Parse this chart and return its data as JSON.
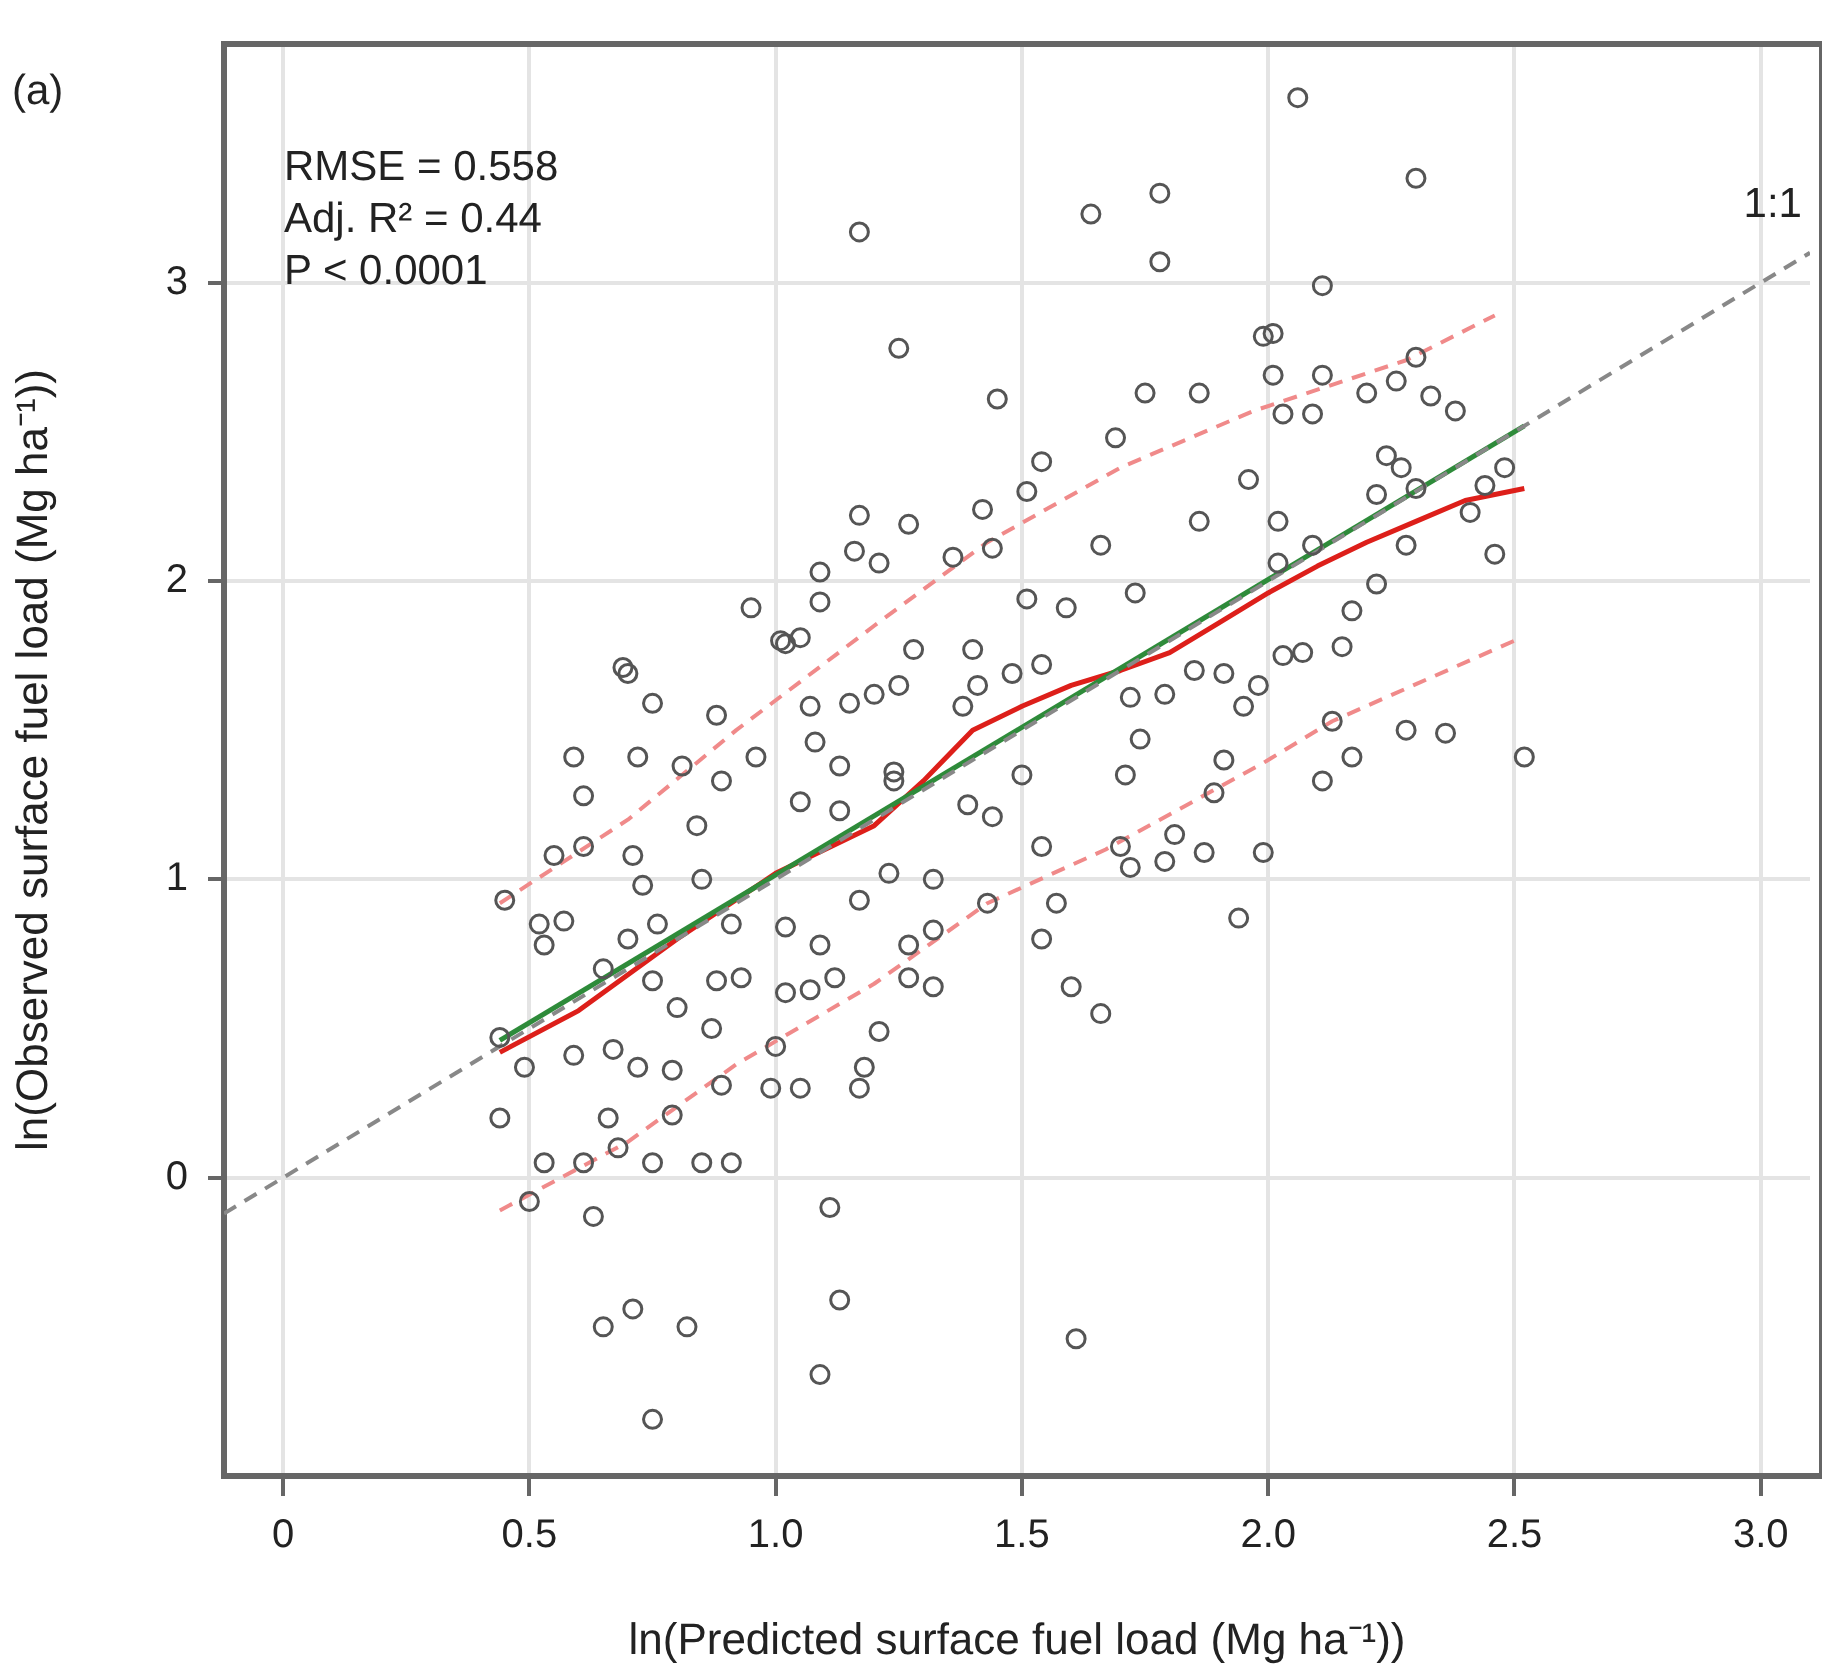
{
  "chart_data": {
    "type": "scatter",
    "title": "(a)",
    "xlabel": "ln(Predicted surface fuel load (Mg ha⁻¹))",
    "ylabel": "ln(Observed surface fuel load (Mg ha⁻¹))",
    "xlim": [
      -0.12,
      3.1
    ],
    "ylim": [
      -1.0,
      3.8
    ],
    "xticks": [
      0,
      0.5,
      {
        "value": 1,
        "label": "1.0"
      },
      1.5,
      {
        "value": 2,
        "label": "2.0"
      },
      2.5,
      {
        "value": 3,
        "label": "3.0"
      }
    ],
    "yticks": [
      0,
      1,
      2,
      3
    ],
    "grid": true,
    "legend": false,
    "annotations": [
      "RMSE = 0.558",
      "Adj. R² = 0.44",
      "P < 0.0001"
    ],
    "series": [
      {
        "color": "#555555",
        "marker": "circle",
        "x": [
          2.06,
          2.3,
          1.17,
          1.64,
          1.78,
          1.78,
          1.25,
          1.45,
          1.75,
          1.86,
          1.69,
          1.54,
          1.51,
          1.17,
          1.27,
          1.42,
          1.16,
          1.21,
          1.09,
          0.95,
          1.09,
          1.36,
          1.44,
          1.66,
          1.73,
          1.86,
          1.96,
          1.99,
          1.28,
          1.51,
          1.59,
          1.4,
          1.02,
          1.54,
          2.11,
          2.01,
          2.01,
          2.11,
          2.2,
          2.26,
          2.3,
          2.33,
          2.38,
          2.03,
          2.09,
          2.24,
          2.27,
          2.48,
          2.44,
          2.22,
          2.3,
          2.41,
          2.46,
          2.28,
          2.09,
          2.22,
          2.17,
          2.15,
          2.07,
          2.03,
          1.98,
          2.13,
          2.28,
          2.36,
          2.02,
          2.02,
          2.52,
          2.17,
          2.11,
          1.99,
          1.11,
          1.13,
          1.09,
          1.61,
          1.66,
          1.6,
          1.17,
          1.18,
          1.21,
          1.05,
          0.99,
          1.0,
          1.32,
          1.27,
          1.07,
          1.12,
          1.02,
          1.43,
          1.57,
          1.54,
          1.32,
          1.27,
          1.23,
          1.17,
          1.09,
          1.02,
          1.39,
          1.44,
          1.5,
          1.54,
          1.32,
          1.72,
          1.79,
          1.87,
          1.94,
          1.7,
          1.71,
          1.91,
          1.89,
          1.81,
          1.05,
          1.13,
          0.96,
          1.08,
          1.24,
          0.75,
          0.65,
          0.71,
          0.82,
          0.63,
          0.5,
          0.44,
          0.53,
          0.61,
          0.68,
          0.75,
          0.85,
          0.91,
          0.66,
          0.79,
          0.49,
          0.67,
          0.59,
          0.72,
          0.79,
          0.89,
          0.44,
          0.65,
          0.75,
          0.8,
          0.87,
          0.88,
          0.53,
          0.52,
          0.57,
          0.7,
          0.76,
          0.85,
          0.73,
          0.45,
          0.55,
          0.61,
          0.71,
          0.61,
          0.59,
          0.72,
          0.81,
          0.89,
          0.84,
          0.91,
          0.93,
          0.69,
          0.7,
          0.75,
          0.88,
          1.01,
          1.05,
          1.07,
          1.15,
          1.2,
          1.25,
          1.38,
          1.41,
          1.48,
          1.72,
          1.79,
          1.85,
          1.91,
          1.95,
          1.13,
          1.24,
          1.74
        ],
        "values": [
          3.62,
          3.35,
          3.17,
          3.23,
          3.3,
          3.07,
          2.78,
          2.61,
          2.63,
          2.63,
          2.48,
          2.4,
          2.3,
          2.22,
          2.19,
          2.24,
          2.1,
          2.06,
          2.03,
          1.91,
          1.93,
          2.08,
          2.11,
          2.12,
          1.96,
          2.2,
          2.34,
          2.82,
          1.77,
          1.94,
          1.91,
          1.77,
          1.79,
          1.72,
          2.99,
          2.83,
          2.69,
          2.69,
          2.63,
          2.67,
          2.75,
          2.62,
          2.57,
          2.56,
          2.56,
          2.42,
          2.38,
          2.38,
          2.32,
          2.29,
          2.31,
          2.23,
          2.09,
          2.12,
          2.12,
          1.99,
          1.9,
          1.78,
          1.76,
          1.75,
          1.65,
          1.53,
          1.5,
          1.49,
          2.06,
          2.2,
          1.41,
          1.41,
          1.33,
          1.09,
          -0.1,
          -0.41,
          -0.66,
          -0.54,
          0.55,
          0.64,
          0.3,
          0.37,
          0.49,
          0.3,
          0.3,
          0.44,
          0.64,
          0.67,
          0.63,
          0.67,
          0.62,
          0.92,
          0.92,
          0.8,
          0.83,
          0.78,
          1.02,
          0.93,
          0.78,
          0.84,
          1.25,
          1.21,
          1.35,
          1.11,
          1.0,
          1.04,
          1.06,
          1.09,
          0.87,
          1.11,
          1.35,
          1.4,
          1.29,
          1.15,
          1.26,
          1.23,
          1.41,
          1.46,
          1.33,
          -0.81,
          -0.5,
          -0.44,
          -0.5,
          -0.13,
          -0.08,
          0.2,
          0.05,
          0.05,
          0.1,
          0.05,
          0.05,
          0.05,
          0.2,
          0.21,
          0.37,
          0.43,
          0.41,
          0.37,
          0.36,
          0.31,
          0.47,
          0.7,
          0.66,
          0.57,
          0.5,
          0.66,
          0.78,
          0.85,
          0.86,
          0.8,
          0.85,
          1.0,
          0.98,
          0.93,
          1.08,
          1.11,
          1.08,
          1.28,
          1.41,
          1.41,
          1.38,
          1.33,
          1.18,
          0.85,
          0.67,
          1.71,
          1.69,
          1.59,
          1.55,
          1.8,
          1.81,
          1.58,
          1.59,
          1.62,
          1.65,
          1.58,
          1.65,
          1.69,
          1.61,
          1.62,
          1.7,
          1.69,
          1.58,
          1.38,
          1.36,
          1.47
        ]
      },
      {
        "type": "line",
        "name": "1:1",
        "color": "#888888",
        "line_style": "dashed",
        "marker": "none",
        "x": [
          -0.12,
          3.1
        ],
        "values": [
          -0.12,
          3.1
        ]
      },
      {
        "type": "line",
        "color": "#f08a8a",
        "line_style": "dashed",
        "marker": "none",
        "x": [
          0.44,
          0.7,
          0.92,
          1.2,
          1.43,
          1.7,
          1.97,
          2.28,
          2.46
        ],
        "values": [
          0.92,
          1.2,
          1.5,
          1.85,
          2.13,
          2.38,
          2.57,
          2.74,
          2.89
        ]
      },
      {
        "type": "line",
        "color": "#f08a8a",
        "line_style": "dashed",
        "marker": "none",
        "x": [
          0.44,
          0.7,
          0.92,
          1.2,
          1.43,
          1.67,
          1.99,
          2.13,
          2.5
        ],
        "values": [
          -0.11,
          0.12,
          0.38,
          0.65,
          0.92,
          1.1,
          1.39,
          1.53,
          1.8
        ]
      },
      {
        "type": "line",
        "color": "#2e8b3a",
        "line_style": "solid",
        "marker": "none",
        "x": [
          0.44,
          2.52
        ],
        "values": [
          0.46,
          2.52
        ]
      },
      {
        "type": "line",
        "color": "#dd1f1a",
        "line_style": "solid",
        "marker": "none",
        "x": [
          0.44,
          0.6,
          0.8,
          1.0,
          1.2,
          1.3,
          1.4,
          1.5,
          1.6,
          1.7,
          1.8,
          1.9,
          2.0,
          2.1,
          2.2,
          2.3,
          2.4,
          2.52
        ],
        "values": [
          0.42,
          0.56,
          0.8,
          1.02,
          1.18,
          1.33,
          1.5,
          1.58,
          1.65,
          1.7,
          1.76,
          1.86,
          1.96,
          2.05,
          2.13,
          2.2,
          2.27,
          2.31
        ]
      }
    ]
  }
}
